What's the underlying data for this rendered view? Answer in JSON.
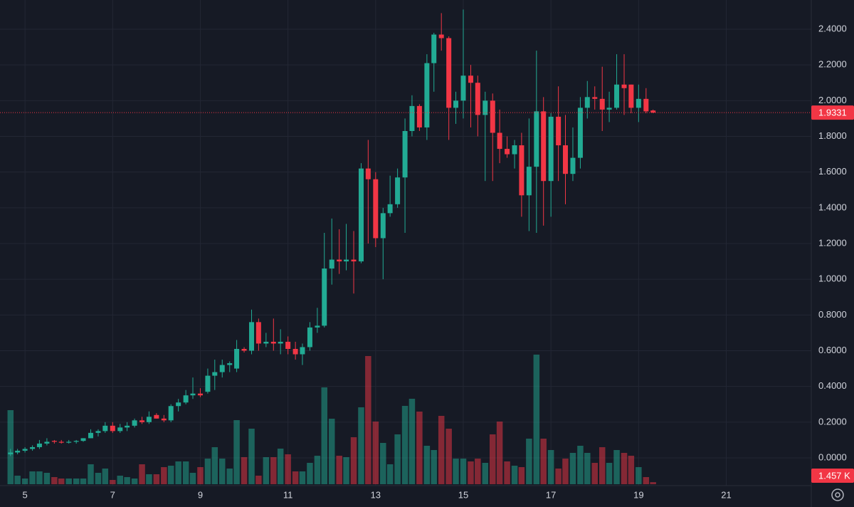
{
  "chart_data": {
    "type": "candlestick",
    "up_color": "#22ab94",
    "down_color": "#f23645",
    "grid": true,
    "xlim": [
      4.43,
      22.94
    ],
    "xticks": [
      5,
      7,
      9,
      11,
      13,
      15,
      17,
      19,
      21
    ],
    "ylim": [
      -0.1555,
      2.5635
    ],
    "yticks": [
      {
        "value": 0,
        "label": "0.0000"
      },
      {
        "value": 0.2,
        "label": "0.2000"
      },
      {
        "value": 0.4,
        "label": "0.4000"
      },
      {
        "value": 0.6,
        "label": "0.6000"
      },
      {
        "value": 0.8,
        "label": "0.8000"
      },
      {
        "value": 1.0,
        "label": "1.0000"
      },
      {
        "value": 1.2,
        "label": "1.2000"
      },
      {
        "value": 1.4,
        "label": "1.4000"
      },
      {
        "value": 1.6,
        "label": "1.6000"
      },
      {
        "value": 1.8,
        "label": "1.8000"
      },
      {
        "value": 2.0,
        "label": "2.0000"
      },
      {
        "value": 2.2,
        "label": "2.2000"
      },
      {
        "value": 2.4,
        "label": "2.4000"
      }
    ],
    "vlim": [
      0,
      100
    ],
    "x": [
      4.67,
      4.83,
      5,
      5.17,
      5.33,
      5.5,
      5.67,
      5.83,
      6,
      6.17,
      6.33,
      6.5,
      6.67,
      6.83,
      7,
      7.17,
      7.33,
      7.5,
      7.67,
      7.83,
      8,
      8.17,
      8.33,
      8.5,
      8.67,
      8.83,
      9,
      9.17,
      9.33,
      9.5,
      9.67,
      9.83,
      10,
      10.17,
      10.33,
      10.5,
      10.67,
      10.83,
      11,
      11.17,
      11.33,
      11.5,
      11.67,
      11.83,
      12,
      12.17,
      12.33,
      12.5,
      12.67,
      12.83,
      13,
      13.17,
      13.33,
      13.5,
      13.67,
      13.83,
      14,
      14.17,
      14.33,
      14.5,
      14.67,
      14.83,
      15,
      15.17,
      15.33,
      15.5,
      15.67,
      15.83,
      16,
      16.17,
      16.33,
      16.5,
      16.67,
      16.83,
      17,
      17.17,
      17.33,
      17.5,
      17.67,
      17.83,
      18,
      18.17,
      18.33,
      18.5,
      18.67,
      18.83,
      19,
      19.17,
      19.33
    ],
    "open": [
      0.02,
      0.03,
      0.04,
      0.05,
      0.06,
      0.08,
      0.095,
      0.09,
      0.085,
      0.09,
      0.095,
      0.11,
      0.14,
      0.15,
      0.18,
      0.15,
      0.17,
      0.18,
      0.21,
      0.2,
      0.24,
      0.22,
      0.21,
      0.29,
      0.31,
      0.35,
      0.36,
      0.37,
      0.46,
      0.48,
      0.52,
      0.5,
      0.61,
      0.6,
      0.76,
      0.64,
      0.65,
      0.64,
      0.65,
      0.61,
      0.58,
      0.62,
      0.73,
      0.74,
      1.06,
      1.11,
      1.1,
      1.11,
      1.1,
      1.62,
      1.56,
      1.23,
      1.37,
      1.42,
      1.57,
      1.83,
      1.97,
      1.85,
      2.21,
      2.37,
      2.35,
      1.96,
      2.0,
      2.14,
      2.1,
      1.92,
      2.0,
      1.82,
      1.73,
      1.7,
      1.75,
      1.47,
      1.63,
      1.94,
      1.55,
      1.91,
      1.75,
      1.59,
      1.68,
      1.96,
      2.02,
      2.01,
      1.95,
      1.96,
      2.09,
      2.09,
      1.96,
      2.01,
      1.945
    ],
    "high": [
      0.05,
      0.05,
      0.06,
      0.07,
      0.1,
      0.11,
      0.1,
      0.1,
      0.1,
      0.1,
      0.11,
      0.16,
      0.16,
      0.2,
      0.2,
      0.19,
      0.2,
      0.22,
      0.23,
      0.26,
      0.25,
      0.24,
      0.3,
      0.33,
      0.38,
      0.45,
      0.39,
      0.5,
      0.55,
      0.55,
      0.54,
      0.66,
      0.62,
      0.83,
      0.78,
      0.7,
      0.78,
      0.72,
      0.68,
      0.65,
      0.64,
      0.76,
      0.84,
      1.26,
      1.34,
      1.28,
      1.31,
      1.27,
      1.65,
      1.78,
      1.6,
      1.4,
      1.58,
      1.62,
      1.9,
      2.03,
      1.98,
      2.26,
      2.38,
      2.49,
      2.36,
      2.05,
      2.51,
      2.2,
      2.14,
      2.05,
      2.04,
      1.95,
      1.8,
      1.78,
      1.82,
      1.9,
      2.28,
      2.02,
      1.93,
      2.08,
      1.92,
      1.85,
      2.02,
      2.11,
      2.08,
      2.19,
      2.05,
      2.26,
      2.26,
      2.09,
      2.09,
      2.07,
      1.95
    ],
    "low": [
      0.01,
      0.02,
      0.03,
      0.04,
      0.05,
      0.07,
      0.08,
      0.08,
      0.08,
      0.08,
      0.09,
      0.11,
      0.12,
      0.14,
      0.14,
      0.14,
      0.15,
      0.17,
      0.19,
      0.19,
      0.22,
      0.2,
      0.2,
      0.26,
      0.3,
      0.33,
      0.34,
      0.36,
      0.38,
      0.45,
      0.48,
      0.48,
      0.59,
      0.58,
      0.6,
      0.62,
      0.6,
      0.58,
      0.58,
      0.55,
      0.52,
      0.6,
      0.7,
      0.73,
      0.97,
      1.03,
      1.05,
      0.92,
      1.09,
      1.2,
      1.18,
      1.0,
      1.35,
      1.4,
      1.26,
      1.8,
      1.83,
      1.78,
      2.05,
      2.28,
      1.78,
      1.87,
      1.9,
      1.85,
      1.8,
      1.55,
      1.55,
      1.65,
      1.68,
      1.62,
      1.35,
      1.27,
      1.26,
      1.3,
      1.35,
      1.55,
      1.42,
      1.55,
      1.62,
      1.9,
      1.95,
      1.83,
      1.88,
      1.95,
      1.92,
      1.93,
      1.88,
      1.93,
      1.93
    ],
    "close": [
      0.03,
      0.04,
      0.05,
      0.06,
      0.08,
      0.09,
      0.09,
      0.085,
      0.09,
      0.095,
      0.11,
      0.14,
      0.15,
      0.18,
      0.15,
      0.17,
      0.18,
      0.21,
      0.2,
      0.23,
      0.22,
      0.21,
      0.29,
      0.31,
      0.35,
      0.36,
      0.35,
      0.46,
      0.48,
      0.52,
      0.53,
      0.61,
      0.6,
      0.76,
      0.64,
      0.65,
      0.64,
      0.65,
      0.61,
      0.58,
      0.62,
      0.73,
      0.74,
      1.06,
      1.11,
      1.1,
      1.11,
      1.1,
      1.62,
      1.56,
      1.23,
      1.37,
      1.42,
      1.57,
      1.83,
      1.97,
      1.85,
      2.21,
      2.37,
      2.35,
      1.96,
      2.0,
      2.14,
      2.1,
      1.92,
      2.0,
      1.82,
      1.73,
      1.7,
      1.75,
      1.47,
      1.63,
      1.94,
      1.55,
      1.91,
      1.75,
      1.59,
      1.68,
      1.96,
      2.02,
      2.01,
      1.95,
      1.96,
      2.09,
      2.07,
      1.96,
      2.01,
      1.94,
      1.9331
    ],
    "volume": [
      52,
      6,
      4,
      9,
      9,
      8,
      5,
      4,
      4,
      4,
      4,
      14,
      8,
      11,
      3,
      6,
      5,
      4,
      14,
      7,
      7,
      12,
      13,
      16,
      16,
      8,
      12,
      18,
      26,
      18,
      11,
      45,
      19,
      39,
      6,
      19,
      19,
      25,
      21,
      9,
      9,
      15,
      20,
      68,
      46,
      20,
      19,
      33,
      54,
      90,
      44,
      29,
      14,
      35,
      55,
      60,
      51,
      27,
      24,
      48,
      39,
      18,
      18,
      16,
      18,
      15,
      35,
      44,
      16,
      13,
      12,
      32,
      91,
      32,
      24,
      11,
      18,
      22,
      27,
      22,
      15,
      26,
      15,
      24,
      22,
      20,
      12,
      5,
      1.457
    ],
    "volume_last_label": "1.457 K"
  }
}
